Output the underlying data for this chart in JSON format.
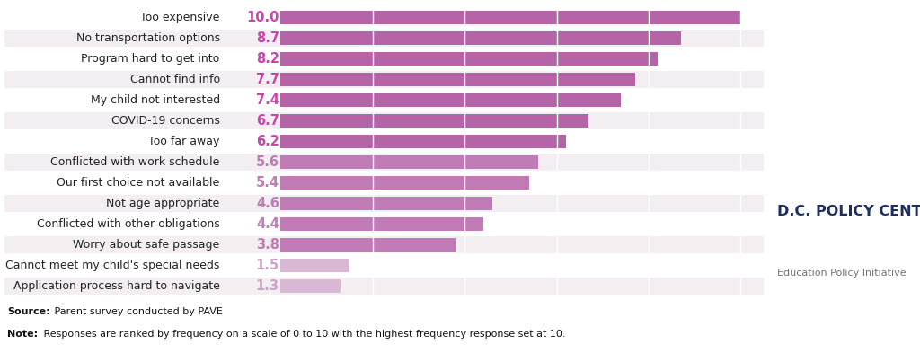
{
  "categories": [
    "Too expensive",
    "No transportation options",
    "Program hard to get into",
    "Cannot find info",
    "My child not interested",
    "COVID-19 concerns",
    "Too far away",
    "Conflicted with work schedule",
    "Our first choice not available",
    "Not age appropriate",
    "Conflicted with other obligations",
    "Worry about safe passage",
    "Cannot meet my child's special needs",
    "Application process hard to navigate"
  ],
  "values": [
    10.0,
    8.7,
    8.2,
    7.7,
    7.4,
    6.7,
    6.2,
    5.6,
    5.4,
    4.6,
    4.4,
    3.8,
    1.5,
    1.3
  ],
  "bar_colors": [
    "#b565a7",
    "#b565a7",
    "#b565a7",
    "#b565a7",
    "#b565a7",
    "#b565a7",
    "#b565a7",
    "#c07ab5",
    "#c07ab5",
    "#c07ab5",
    "#c07ab5",
    "#c07ab5",
    "#d9b8d5",
    "#d9b8d5"
  ],
  "value_colors": [
    "#cc44aa",
    "#cc44aa",
    "#cc44aa",
    "#cc44aa",
    "#cc44aa",
    "#cc44aa",
    "#cc44aa",
    "#c07ab5",
    "#c07ab5",
    "#c07ab5",
    "#c07ab5",
    "#c07ab5",
    "#d0a0c8",
    "#d0a0c8"
  ],
  "background_color": "#ffffff",
  "row_alt_color": "#f2eef2",
  "source_bold": "Source:",
  "source_rest": " Parent survey conducted by PAVE",
  "note_bold": "Note:",
  "note_rest": " Responses are ranked by frequency on a scale of 0 to 10 with the highest frequency response set at 10.",
  "dc_policy_center_text": "D.C. POLICY CENTER",
  "education_policy_text": "Education Policy Initiative",
  "gold_line_color": "#c8a020",
  "dc_navy_color": "#1e2f5e",
  "dc_gray_color": "#6b7280",
  "xlim_max": 10.5,
  "label_fontsize": 9.0,
  "value_fontsize": 10.5,
  "footer_fontsize": 8.0
}
